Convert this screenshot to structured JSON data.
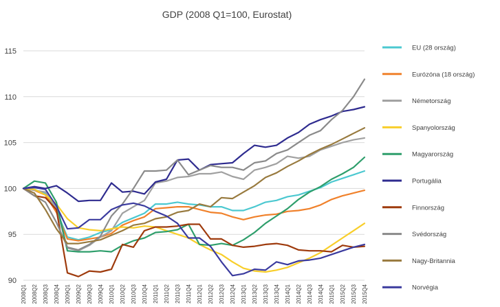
{
  "chart_data": {
    "type": "line",
    "title": "GDP (2008 Q1=100, Eurostat)",
    "ylim": [
      90,
      115
    ],
    "yticks": [
      90,
      95,
      100,
      105,
      110,
      115
    ],
    "grid": true,
    "legend_position": "right",
    "x": [
      "2008Q1",
      "2008Q2",
      "2008Q3",
      "2008Q4",
      "2009Q1",
      "2009Q2",
      "2009Q3",
      "2009Q4",
      "2010Q1",
      "2010Q2",
      "2010Q3",
      "2010Q4",
      "2011Q1",
      "2011Q2",
      "2011Q3",
      "2011Q4",
      "2012Q1",
      "2012Q2",
      "2012Q3",
      "2012Q4",
      "2013Q1",
      "2013Q2",
      "2013Q3",
      "2013Q4",
      "2014Q1",
      "2014Q2",
      "2014Q3",
      "2014Q4",
      "2015Q1",
      "2015Q2",
      "2015Q3",
      "2015Q4"
    ],
    "series": [
      {
        "name": "EU (28 ország)",
        "color": "#4bc8d0",
        "values": [
          100,
          99.9,
          99.4,
          97.6,
          94.7,
          94.4,
          94.7,
          95.2,
          95.5,
          96.3,
          96.8,
          97.3,
          98.3,
          98.3,
          98.5,
          98.3,
          98.2,
          98.0,
          98.0,
          97.6,
          97.6,
          98.0,
          98.5,
          98.7,
          99.1,
          99.3,
          99.7,
          100.1,
          100.7,
          101.1,
          101.5,
          101.9
        ]
      },
      {
        "name": "Eurózóna (18 ország)",
        "color": "#f0812b",
        "values": [
          100,
          99.8,
          99.3,
          97.4,
          94.5,
          94.3,
          94.5,
          94.7,
          95.1,
          96.0,
          96.5,
          96.9,
          97.8,
          97.9,
          98.0,
          98.0,
          97.7,
          97.4,
          97.3,
          96.9,
          96.6,
          96.9,
          97.1,
          97.2,
          97.5,
          97.6,
          97.8,
          98.2,
          98.8,
          99.2,
          99.5,
          99.8
        ]
      },
      {
        "name": "Németország",
        "color": "#a0a0a0",
        "values": [
          100,
          99.8,
          99.6,
          97.8,
          93.5,
          93.2,
          93.8,
          94.7,
          95.4,
          97.3,
          98.0,
          98.7,
          100.6,
          100.8,
          101.2,
          101.3,
          101.6,
          101.6,
          101.8,
          101.3,
          101.0,
          102.0,
          102.3,
          102.7,
          103.5,
          103.3,
          103.5,
          104.2,
          104.6,
          105.0,
          105.3,
          105.5
        ]
      },
      {
        "name": "Spanyolország",
        "color": "#f8ce2a",
        "values": [
          100,
          99.9,
          99.3,
          98.3,
          96.7,
          95.7,
          95.5,
          95.4,
          95.6,
          95.8,
          95.7,
          95.9,
          95.8,
          95.4,
          95.0,
          94.6,
          93.9,
          93.3,
          92.8,
          92.0,
          91.3,
          91.0,
          90.9,
          91.1,
          91.4,
          91.9,
          92.4,
          93.0,
          93.8,
          94.6,
          95.4,
          96.2
        ]
      },
      {
        "name": "Magyarország",
        "color": "#2e9e6b",
        "values": [
          100,
          100.8,
          100.6,
          98.5,
          93.2,
          93.1,
          93.1,
          93.2,
          93.1,
          93.8,
          94.3,
          94.6,
          95.2,
          95.3,
          95.5,
          96.1,
          93.9,
          93.8,
          94.0,
          93.8,
          94.4,
          95.2,
          96.2,
          97.0,
          97.8,
          98.8,
          99.6,
          100.2,
          101.0,
          101.6,
          102.3,
          103.4
        ]
      },
      {
        "name": "Portugália",
        "color": "#2e2b8f",
        "values": [
          100,
          100.2,
          100.0,
          100.3,
          99.5,
          98.6,
          98.7,
          98.7,
          100.6,
          99.6,
          99.7,
          99.4,
          100.7,
          101.0,
          103.1,
          103.2,
          102.0,
          102.6,
          102.7,
          102.8,
          103.8,
          104.7,
          104.5,
          104.7,
          105.5,
          106.1,
          107.0,
          107.5,
          107.9,
          108.4,
          108.6,
          108.9
        ]
      },
      {
        "name": "Finnország",
        "color": "#9e3a0c",
        "values": [
          100,
          99.2,
          99.0,
          97.7,
          90.8,
          90.4,
          91.0,
          90.9,
          91.2,
          93.9,
          93.6,
          95.4,
          95.8,
          95.8,
          95.9,
          96.1,
          96.1,
          94.5,
          94.5,
          93.8,
          93.6,
          93.7,
          93.9,
          94.0,
          93.8,
          93.3,
          93.2,
          93.2,
          93.1,
          93.8,
          93.6,
          93.7
        ]
      },
      {
        "name": "Svédország",
        "color": "#8a8a8a",
        "values": [
          100,
          99.2,
          98.5,
          96.3,
          93.6,
          93.3,
          93.9,
          94.8,
          97.0,
          98.3,
          100.0,
          101.9,
          101.9,
          102.0,
          103.1,
          101.5,
          102.0,
          102.5,
          102.3,
          102.3,
          102.0,
          102.8,
          103.0,
          103.8,
          104.2,
          105.0,
          105.8,
          106.3,
          107.5,
          108.5,
          110.0,
          111.9
        ]
      },
      {
        "name": "Nagy-Britannia",
        "color": "#987a3e",
        "values": [
          100,
          99.5,
          97.7,
          95.6,
          94.0,
          94.0,
          94.2,
          94.4,
          94.9,
          95.4,
          96.0,
          96.2,
          96.7,
          96.9,
          97.4,
          97.6,
          98.3,
          98.0,
          99.0,
          98.9,
          99.6,
          100.3,
          101.2,
          101.7,
          102.4,
          103.0,
          103.7,
          104.3,
          104.8,
          105.4,
          106.0,
          106.6
        ]
      },
      {
        "name": "Norvégia",
        "color": "#3a3a9e",
        "values": [
          100,
          100.1,
          99.9,
          98.1,
          95.6,
          95.7,
          96.6,
          96.6,
          97.7,
          98.2,
          98.4,
          98.1,
          97.5,
          97.0,
          96.2,
          94.6,
          94.6,
          93.7,
          92.0,
          90.5,
          90.7,
          91.2,
          91.1,
          92.0,
          91.7,
          92.1,
          92.2,
          92.4,
          92.8,
          93.2,
          93.6,
          93.9
        ]
      }
    ]
  }
}
